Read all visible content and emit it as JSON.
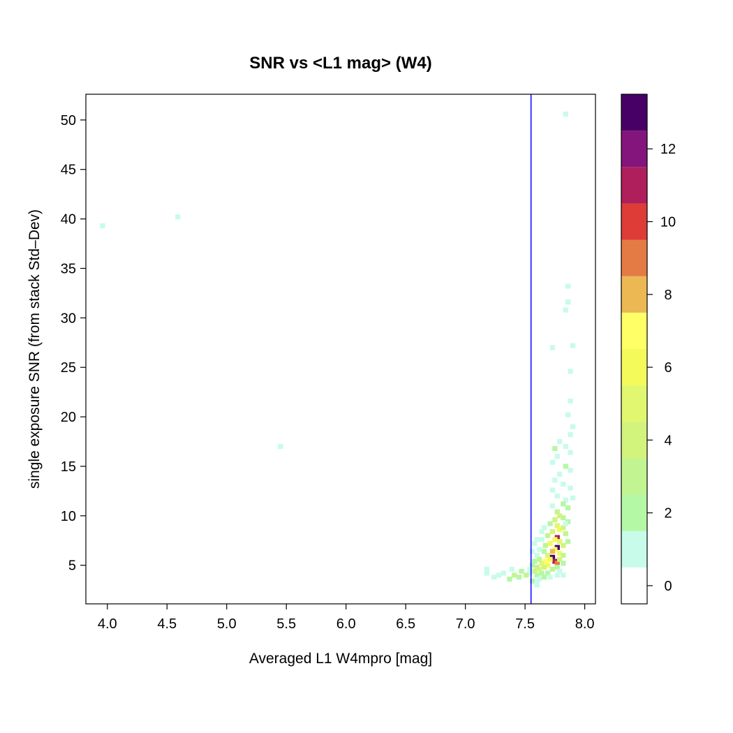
{
  "chart_data": {
    "type": "heatmap",
    "title": "SNR vs <L1 mag> (W4)",
    "xlabel": "Averaged L1 W4mpro [mag]",
    "ylabel": "single exposure SNR (from stack Std–Dev)",
    "xlim": [
      3.82,
      8.09
    ],
    "ylim": [
      1.1,
      52.6
    ],
    "x_ticks": [
      "4.0",
      "4.5",
      "5.0",
      "5.5",
      "6.0",
      "6.5",
      "7.0",
      "7.5",
      "8.0"
    ],
    "y_ticks": [
      "5",
      "10",
      "15",
      "20",
      "25",
      "30",
      "35",
      "40",
      "45",
      "50"
    ],
    "grid": false,
    "vertical_line": {
      "x": 7.55,
      "color": "#0000ff"
    },
    "bin_size": {
      "x": 0.0427,
      "y": 0.5
    },
    "colorbar": {
      "ticks": [
        "0",
        "2",
        "4",
        "6",
        "8",
        "10",
        "12"
      ],
      "range": [
        -0.5,
        13.5
      ],
      "colors": [
        "#ffffff",
        "#c8fbea",
        "#b4f8a6",
        "#c2f592",
        "#d2f47c",
        "#e0f76f",
        "#f4fa5a",
        "#ffff66",
        "#ebb853",
        "#e47b44",
        "#dd3c37",
        "#ae1f5b",
        "#83157c",
        "#470066"
      ]
    },
    "cells": [
      [
        3.96,
        39.3,
        1
      ],
      [
        4.59,
        40.2,
        1
      ],
      [
        5.45,
        17.0,
        1
      ],
      [
        7.84,
        50.6,
        1
      ],
      [
        7.86,
        33.2,
        1
      ],
      [
        7.86,
        31.6,
        1
      ],
      [
        7.84,
        30.8,
        1
      ],
      [
        7.73,
        27.0,
        1
      ],
      [
        7.9,
        27.2,
        1
      ],
      [
        7.88,
        24.6,
        1
      ],
      [
        7.88,
        21.6,
        1
      ],
      [
        7.86,
        20.2,
        1
      ],
      [
        7.9,
        19.0,
        1
      ],
      [
        7.88,
        18.2,
        1
      ],
      [
        7.75,
        16.8,
        2
      ],
      [
        7.79,
        17.5,
        1
      ],
      [
        7.84,
        17.0,
        1
      ],
      [
        7.88,
        16.4,
        1
      ],
      [
        7.77,
        16.0,
        1
      ],
      [
        7.84,
        15.0,
        2
      ],
      [
        7.73,
        15.4,
        1
      ],
      [
        7.88,
        14.6,
        1
      ],
      [
        7.79,
        14.2,
        1
      ],
      [
        7.75,
        13.6,
        1
      ],
      [
        7.82,
        13.2,
        1
      ],
      [
        7.88,
        12.8,
        1
      ],
      [
        7.73,
        12.6,
        1
      ],
      [
        7.77,
        12.0,
        1
      ],
      [
        7.84,
        11.6,
        1
      ],
      [
        7.9,
        11.8,
        1
      ],
      [
        7.82,
        11.2,
        2
      ],
      [
        7.86,
        10.8,
        2
      ],
      [
        7.73,
        11.0,
        1
      ],
      [
        7.77,
        10.4,
        3
      ],
      [
        7.79,
        10.0,
        4
      ],
      [
        7.82,
        9.8,
        3
      ],
      [
        7.75,
        9.6,
        4
      ],
      [
        7.86,
        9.4,
        2
      ],
      [
        7.71,
        9.2,
        2
      ],
      [
        7.77,
        9.0,
        5
      ],
      [
        7.79,
        8.6,
        6
      ],
      [
        7.82,
        8.8,
        4
      ],
      [
        7.73,
        8.4,
        4
      ],
      [
        7.69,
        8.0,
        3
      ],
      [
        7.84,
        8.2,
        3
      ],
      [
        7.77,
        7.8,
        11
      ],
      [
        7.75,
        7.6,
        6
      ],
      [
        7.79,
        7.4,
        5
      ],
      [
        7.71,
        7.2,
        6
      ],
      [
        7.82,
        7.0,
        4
      ],
      [
        7.67,
        7.0,
        3
      ],
      [
        7.86,
        7.4,
        2
      ],
      [
        7.64,
        7.6,
        1
      ],
      [
        7.77,
        6.8,
        13
      ],
      [
        7.75,
        6.6,
        7
      ],
      [
        7.73,
        6.4,
        8
      ],
      [
        7.79,
        6.2,
        6
      ],
      [
        7.69,
        6.0,
        5
      ],
      [
        7.82,
        6.0,
        3
      ],
      [
        7.66,
        6.4,
        2
      ],
      [
        7.62,
        6.6,
        1
      ],
      [
        7.6,
        6.0,
        1
      ],
      [
        7.73,
        5.8,
        13
      ],
      [
        7.75,
        5.4,
        11
      ],
      [
        7.71,
        5.6,
        6
      ],
      [
        7.77,
        5.2,
        9
      ],
      [
        7.67,
        5.4,
        7
      ],
      [
        7.64,
        5.2,
        5
      ],
      [
        7.79,
        5.6,
        4
      ],
      [
        7.82,
        5.2,
        2
      ],
      [
        7.62,
        5.6,
        3
      ],
      [
        7.58,
        5.4,
        2
      ],
      [
        7.69,
        5.0,
        6
      ],
      [
        7.66,
        4.8,
        4
      ],
      [
        7.62,
        4.6,
        5
      ],
      [
        7.6,
        4.8,
        3
      ],
      [
        7.58,
        4.4,
        4
      ],
      [
        7.56,
        5.0,
        2
      ],
      [
        7.54,
        4.6,
        1
      ],
      [
        7.73,
        4.6,
        3
      ],
      [
        7.77,
        4.8,
        2
      ],
      [
        7.79,
        4.4,
        1
      ],
      [
        7.64,
        4.2,
        2
      ],
      [
        7.69,
        4.2,
        2
      ],
      [
        7.6,
        4.0,
        2
      ],
      [
        7.54,
        4.2,
        1
      ],
      [
        7.51,
        4.0,
        3
      ],
      [
        7.47,
        4.4,
        2
      ],
      [
        7.45,
        3.8,
        2
      ],
      [
        7.41,
        4.0,
        3
      ],
      [
        7.37,
        3.6,
        2
      ],
      [
        7.39,
        4.6,
        1
      ],
      [
        7.32,
        4.2,
        1
      ],
      [
        7.28,
        4.0,
        1
      ],
      [
        7.24,
        3.8,
        1
      ],
      [
        7.18,
        4.2,
        1
      ],
      [
        7.18,
        4.6,
        1
      ],
      [
        7.56,
        3.4,
        2
      ],
      [
        7.6,
        3.4,
        1
      ],
      [
        7.62,
        3.6,
        1
      ],
      [
        7.66,
        3.8,
        2
      ],
      [
        7.71,
        3.8,
        1
      ],
      [
        7.77,
        4.0,
        1
      ],
      [
        7.82,
        4.0,
        1
      ],
      [
        7.6,
        3.0,
        1
      ],
      [
        7.6,
        7.6,
        1
      ],
      [
        7.56,
        6.4,
        1
      ],
      [
        7.58,
        7.2,
        1
      ],
      [
        7.64,
        8.4,
        1
      ],
      [
        7.66,
        8.8,
        1
      ],
      [
        7.84,
        9.2,
        1
      ]
    ]
  }
}
